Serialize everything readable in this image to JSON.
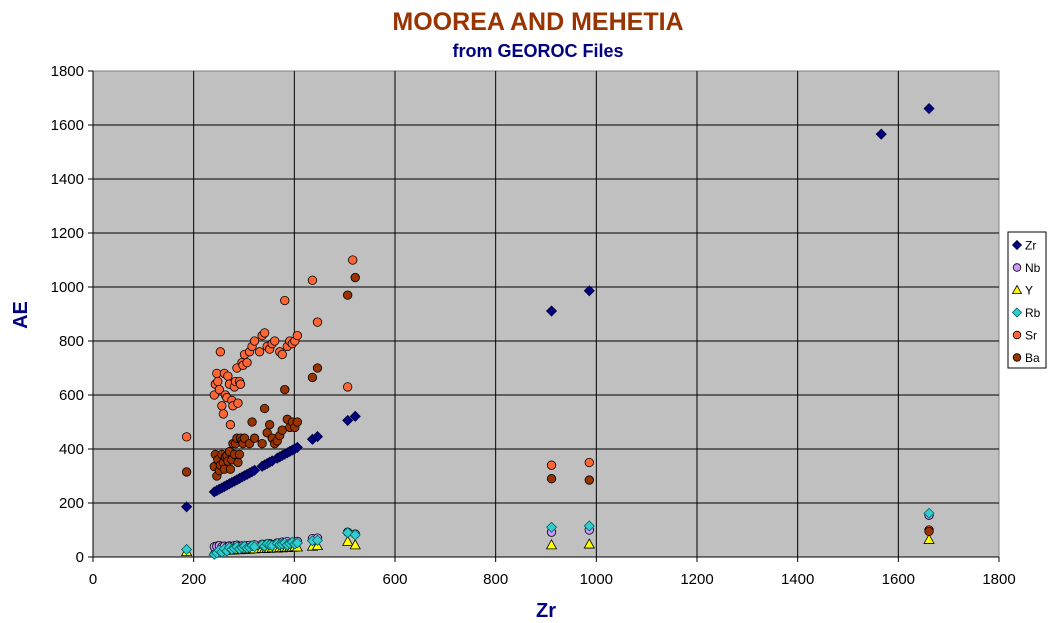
{
  "chart_data": {
    "type": "scatter",
    "title": "MOOREA AND MEHETIA",
    "subtitle": "from GEOROC Files",
    "xlabel": "Zr",
    "ylabel": "AE",
    "xlim": [
      0,
      1800
    ],
    "ylim": [
      0,
      1800
    ],
    "xticks": [
      0,
      200,
      400,
      600,
      800,
      1000,
      1200,
      1400,
      1600,
      1800
    ],
    "yticks": [
      0,
      200,
      400,
      600,
      800,
      1000,
      1200,
      1400,
      1600,
      1800
    ],
    "grid": true,
    "legend_position": "right",
    "colors": {
      "title": "#993300",
      "subtitle": "#000080",
      "axis_label": "#000080",
      "plot_bg": "#C0C0C0"
    },
    "series": [
      {
        "name": "Zr",
        "marker": "diamond",
        "fill": "#000080",
        "x": [
          186,
          241,
          246,
          251,
          256,
          261,
          266,
          271,
          276,
          281,
          286,
          291,
          296,
          301,
          306,
          311,
          316,
          321,
          336,
          341,
          346,
          351,
          356,
          366,
          371,
          376,
          381,
          386,
          391,
          396,
          401,
          406,
          436,
          446,
          506,
          521,
          911,
          986,
          1566,
          1661
        ],
        "y": [
          186,
          241,
          246,
          251,
          256,
          261,
          266,
          271,
          276,
          281,
          286,
          291,
          296,
          301,
          306,
          311,
          316,
          321,
          336,
          341,
          346,
          351,
          356,
          366,
          371,
          376,
          381,
          386,
          391,
          396,
          401,
          406,
          436,
          446,
          506,
          521,
          911,
          986,
          1566,
          1661
        ]
      },
      {
        "name": "Nb",
        "marker": "circle",
        "fill": "#CC99FF",
        "x": [
          241,
          246,
          251,
          256,
          261,
          266,
          271,
          276,
          281,
          286,
          291,
          296,
          301,
          306,
          311,
          316,
          321,
          336,
          341,
          346,
          351,
          356,
          366,
          371,
          376,
          381,
          386,
          391,
          396,
          401,
          406,
          436,
          446,
          506,
          521,
          911,
          986,
          1661
        ],
        "y": [
          38,
          40,
          42,
          38,
          40,
          37,
          41,
          39,
          42,
          44,
          40,
          41,
          38,
          42,
          43,
          40,
          45,
          47,
          44,
          49,
          50,
          46,
          52,
          48,
          55,
          53,
          57,
          50,
          54,
          52,
          58,
          68,
          70,
          92,
          85,
          92,
          100,
          155
        ]
      },
      {
        "name": "Y",
        "marker": "triangle",
        "fill": "#FFFF00",
        "x": [
          186,
          241,
          246,
          251,
          256,
          261,
          266,
          271,
          276,
          281,
          286,
          291,
          296,
          301,
          306,
          311,
          316,
          321,
          336,
          341,
          346,
          351,
          356,
          366,
          371,
          376,
          381,
          386,
          391,
          396,
          401,
          406,
          436,
          446,
          506,
          521,
          911,
          986,
          1661
        ],
        "y": [
          20,
          22,
          24,
          23,
          25,
          24,
          26,
          25,
          27,
          26,
          28,
          27,
          29,
          28,
          30,
          29,
          31,
          30,
          32,
          31,
          33,
          32,
          34,
          33,
          35,
          34,
          36,
          35,
          37,
          36,
          38,
          37,
          40,
          42,
          58,
          45,
          45,
          48,
          65
        ]
      },
      {
        "name": "Rb",
        "marker": "diamond",
        "fill": "#33CCCC",
        "x": [
          186,
          241,
          246,
          251,
          256,
          261,
          266,
          271,
          276,
          281,
          286,
          291,
          296,
          301,
          306,
          311,
          316,
          321,
          336,
          341,
          346,
          351,
          356,
          366,
          371,
          376,
          381,
          386,
          391,
          396,
          401,
          406,
          436,
          446,
          506,
          521,
          911,
          986,
          1661
        ],
        "y": [
          28,
          10,
          15,
          25,
          18,
          30,
          22,
          35,
          28,
          32,
          38,
          30,
          35,
          40,
          33,
          36,
          42,
          38,
          45,
          40,
          48,
          44,
          42,
          50,
          46,
          48,
          52,
          45,
          50,
          55,
          48,
          52,
          60,
          62,
          90,
          82,
          110,
          115,
          162
        ]
      },
      {
        "name": "Sr",
        "marker": "circle",
        "fill": "#FF6633",
        "x": [
          186,
          241,
          243,
          246,
          248,
          251,
          253,
          256,
          259,
          261,
          263,
          266,
          268,
          271,
          273,
          276,
          278,
          281,
          283,
          286,
          288,
          291,
          293,
          296,
          298,
          301,
          306,
          311,
          316,
          321,
          331,
          336,
          341,
          346,
          351,
          356,
          361,
          371,
          376,
          381,
          386,
          391,
          396,
          401,
          406,
          436,
          446,
          506,
          516,
          911,
          986,
          1661
        ],
        "y": [
          445,
          600,
          640,
          680,
          650,
          620,
          760,
          560,
          530,
          680,
          600,
          590,
          670,
          640,
          490,
          580,
          560,
          630,
          650,
          700,
          570,
          650,
          640,
          720,
          710,
          750,
          720,
          760,
          780,
          800,
          760,
          820,
          830,
          780,
          770,
          790,
          800,
          760,
          750,
          950,
          780,
          800,
          790,
          800,
          820,
          1025,
          870,
          630,
          1100,
          340,
          350,
          100
        ]
      },
      {
        "name": "Ba",
        "marker": "circle",
        "fill": "#993300",
        "x": [
          186,
          241,
          243,
          246,
          248,
          251,
          253,
          256,
          259,
          261,
          263,
          266,
          268,
          271,
          273,
          276,
          278,
          281,
          283,
          286,
          288,
          291,
          293,
          296,
          298,
          301,
          311,
          316,
          321,
          336,
          341,
          346,
          351,
          356,
          361,
          366,
          371,
          376,
          381,
          386,
          391,
          396,
          401,
          406,
          436,
          446,
          506,
          521,
          911,
          986,
          1661
        ],
        "y": [
          315,
          335,
          380,
          300,
          360,
          320,
          340,
          380,
          350,
          325,
          370,
          375,
          355,
          390,
          325,
          360,
          420,
          380,
          420,
          440,
          350,
          380,
          440,
          430,
          420,
          440,
          420,
          500,
          440,
          420,
          550,
          460,
          490,
          440,
          420,
          430,
          450,
          470,
          620,
          510,
          480,
          500,
          480,
          500,
          665,
          700,
          970,
          1035,
          290,
          285,
          95
        ]
      }
    ]
  }
}
